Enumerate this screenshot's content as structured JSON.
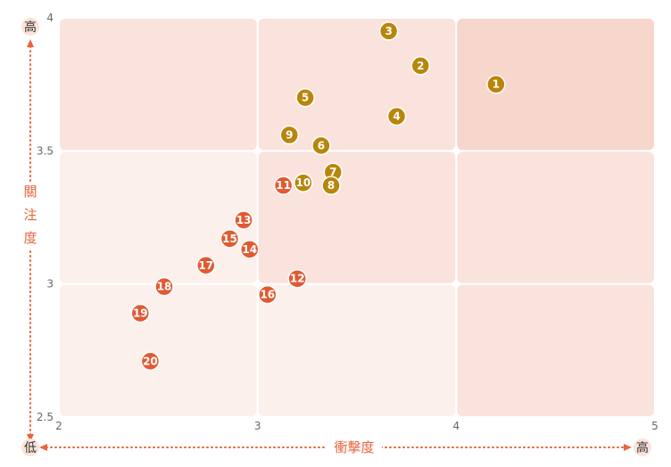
{
  "chart_data": {
    "type": "scatter",
    "title": "",
    "xlabel": "衝擊度",
    "ylabel": "關注度",
    "x_low_label": "低",
    "x_high_label": "高",
    "y_high_label": "高",
    "xlim": [
      2,
      5
    ],
    "ylim": [
      2.5,
      4
    ],
    "x_ticks": [
      "2",
      "3",
      "4",
      "5"
    ],
    "y_ticks": [
      "2.5",
      "3",
      "3.5",
      "4"
    ],
    "grid": false,
    "legend": "none",
    "colors": {
      "high_group": "#b8860b",
      "low_group": "#e05a33",
      "axis_accent": "#e8643c",
      "zone_strong": "#f7d6cc",
      "zone_mid": "#f9e3dc",
      "zone_light": "#fcf0ec"
    },
    "points": [
      {
        "label": "1",
        "x": 4.2,
        "y": 3.75,
        "group": "high"
      },
      {
        "label": "2",
        "x": 3.82,
        "y": 3.82,
        "group": "high"
      },
      {
        "label": "3",
        "x": 3.66,
        "y": 3.95,
        "group": "high"
      },
      {
        "label": "4",
        "x": 3.7,
        "y": 3.63,
        "group": "high"
      },
      {
        "label": "5",
        "x": 3.24,
        "y": 3.7,
        "group": "high"
      },
      {
        "label": "6",
        "x": 3.32,
        "y": 3.52,
        "group": "high"
      },
      {
        "label": "7",
        "x": 3.38,
        "y": 3.42,
        "group": "high"
      },
      {
        "label": "8",
        "x": 3.37,
        "y": 3.37,
        "group": "high"
      },
      {
        "label": "9",
        "x": 3.16,
        "y": 3.56,
        "group": "high"
      },
      {
        "label": "10",
        "x": 3.23,
        "y": 3.38,
        "group": "high"
      },
      {
        "label": "11",
        "x": 3.13,
        "y": 3.37,
        "group": "low"
      },
      {
        "label": "12",
        "x": 3.2,
        "y": 3.02,
        "group": "low"
      },
      {
        "label": "13",
        "x": 2.93,
        "y": 3.24,
        "group": "low"
      },
      {
        "label": "14",
        "x": 2.96,
        "y": 3.13,
        "group": "low"
      },
      {
        "label": "15",
        "x": 2.86,
        "y": 3.17,
        "group": "low"
      },
      {
        "label": "16",
        "x": 3.05,
        "y": 2.96,
        "group": "low"
      },
      {
        "label": "17",
        "x": 2.74,
        "y": 3.07,
        "group": "low"
      },
      {
        "label": "18",
        "x": 2.53,
        "y": 2.99,
        "group": "low"
      },
      {
        "label": "19",
        "x": 2.41,
        "y": 2.89,
        "group": "low"
      },
      {
        "label": "20",
        "x": 2.46,
        "y": 2.71,
        "group": "low"
      }
    ]
  }
}
